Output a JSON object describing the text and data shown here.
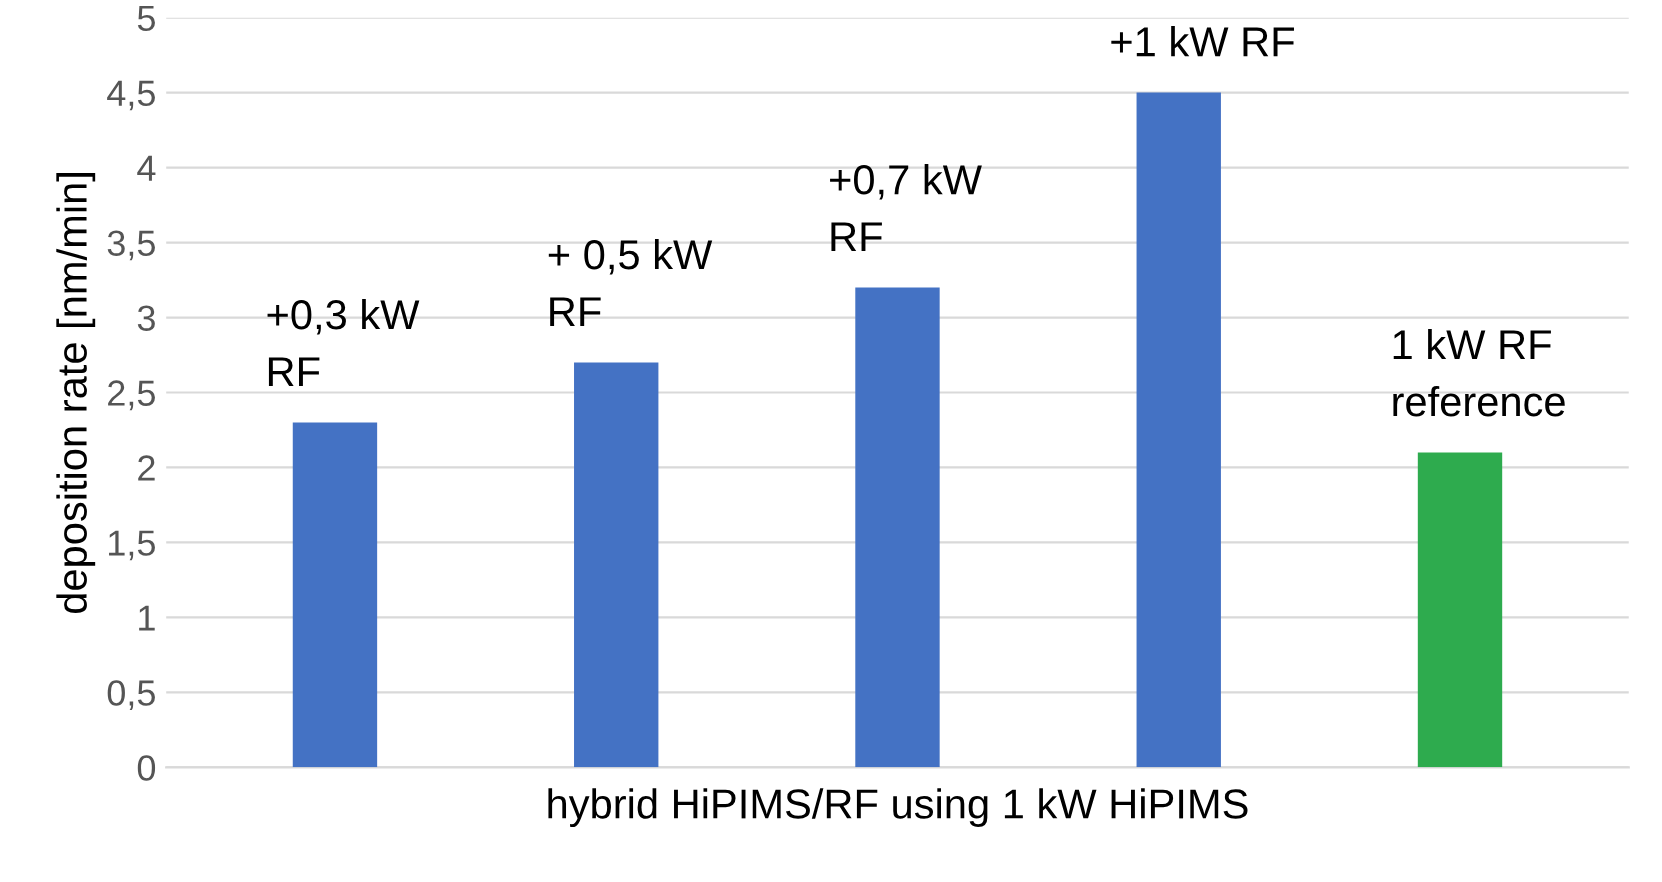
{
  "chart_data": {
    "type": "bar",
    "categories": [
      null,
      null,
      null,
      null,
      null
    ],
    "values": [
      2.3,
      2.7,
      3.2,
      4.5,
      2.1
    ],
    "colors": [
      "#4472c4",
      "#4472c4",
      "#4472c4",
      "#4472c4",
      "#2eab4e"
    ],
    "xlabel": "hybrid HiPIMS/RF using 1 kW HiPIMS",
    "ylabel": "deposition rate [nm/min]",
    "ylim": [
      0,
      5
    ],
    "yticks": [
      0,
      {
        "value": 0.5,
        "label": "0,5"
      },
      1,
      {
        "value": 1.5,
        "label": "1,5"
      },
      2,
      {
        "value": 2.5,
        "label": "2,5"
      },
      3,
      {
        "value": 3.5,
        "label": "3,5"
      },
      4,
      {
        "value": 4.5,
        "label": "4,5"
      },
      5
    ],
    "grid": "y",
    "annotations": [
      {
        "text": "+0,3 kW\nRF",
        "y": 2.3
      },
      {
        "text": "+ 0,5 kW\nRF",
        "y": 2.7
      },
      {
        "text": "+0,7 kW\nRF",
        "y": 3.2
      },
      {
        "text": "+1 kW RF",
        "y": 4.5
      },
      {
        "text": "1 kW RF\nreference",
        "y": 2.1
      }
    ]
  }
}
